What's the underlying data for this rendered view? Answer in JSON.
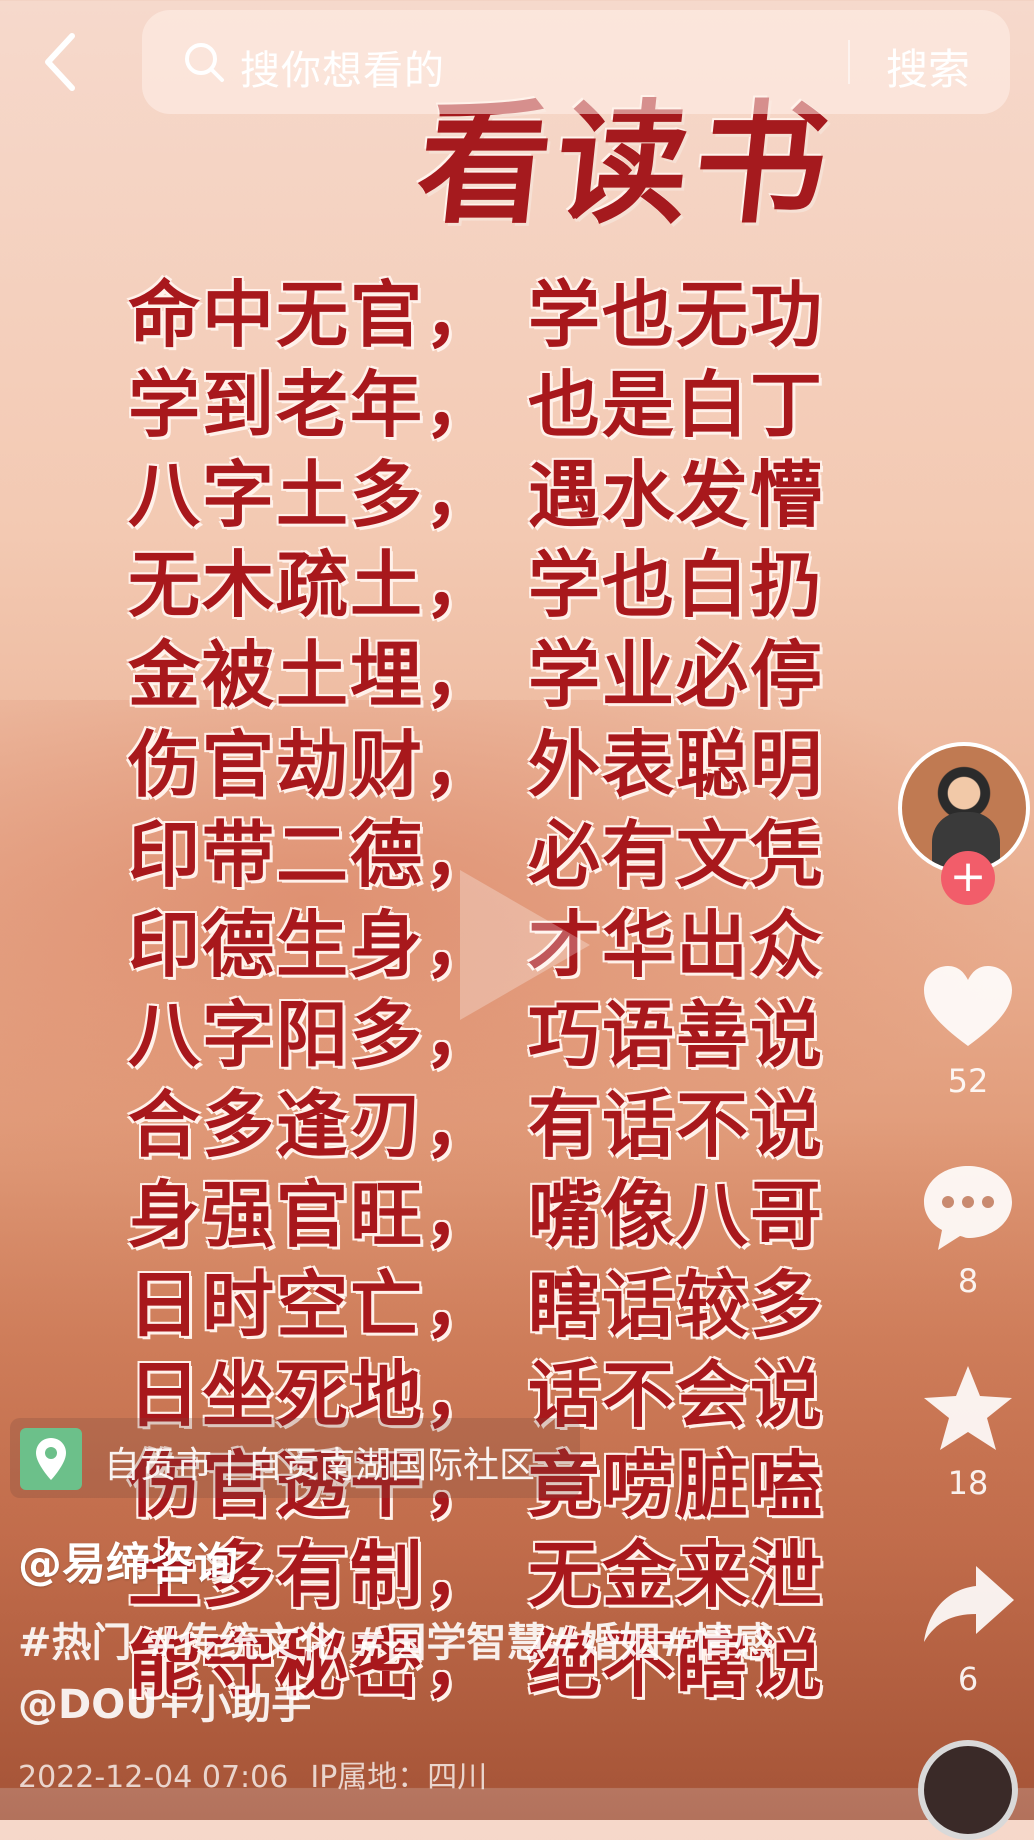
{
  "search": {
    "placeholder": "搜你想看的",
    "button_label": "搜索"
  },
  "poster": {
    "title": "看读书",
    "lines": [
      [
        "命中无官，",
        "学也无功"
      ],
      [
        "学到老年，",
        "也是白丁"
      ],
      [
        "八字土多，",
        "遇水发懵"
      ],
      [
        "无木疏土，",
        "学也白扔"
      ],
      [
        "金被土埋，",
        "学业必停"
      ],
      [
        "伤官劫财，",
        "外表聪明"
      ],
      [
        "印带二德，",
        "必有文凭"
      ],
      [
        "印德生身，",
        "才华出众"
      ],
      [
        "八字阳多，",
        "巧语善说"
      ],
      [
        "合多逢刃，",
        "有话不说"
      ],
      [
        "身强官旺，",
        "嘴像八哥"
      ],
      [
        "日时空亡，",
        "瞎话较多"
      ],
      [
        "日坐死地，",
        "话不会说"
      ],
      [
        "伤官透干，",
        "竟唠脏嗑"
      ],
      [
        "土多有制，",
        "无金来泄"
      ],
      [
        "能守秘密，",
        "绝不瞎说"
      ]
    ]
  },
  "actions": {
    "likes": "52",
    "comments": "8",
    "favorites": "18",
    "shares": "6"
  },
  "location": {
    "text": "自贡市 | 自贡南湖国际社区"
  },
  "caption": {
    "author": "@易缔咨询",
    "text": "#热门 #传统文化 #国学智慧#婚姻#情感@DOU+小助手"
  },
  "meta": {
    "datetime": "2022-12-04 07:06",
    "ip_location": "IP属地：四川"
  },
  "colors": {
    "poster_red": "#a8181c",
    "follow_pink": "#f25d6a",
    "location_green": "#6cc08a"
  }
}
